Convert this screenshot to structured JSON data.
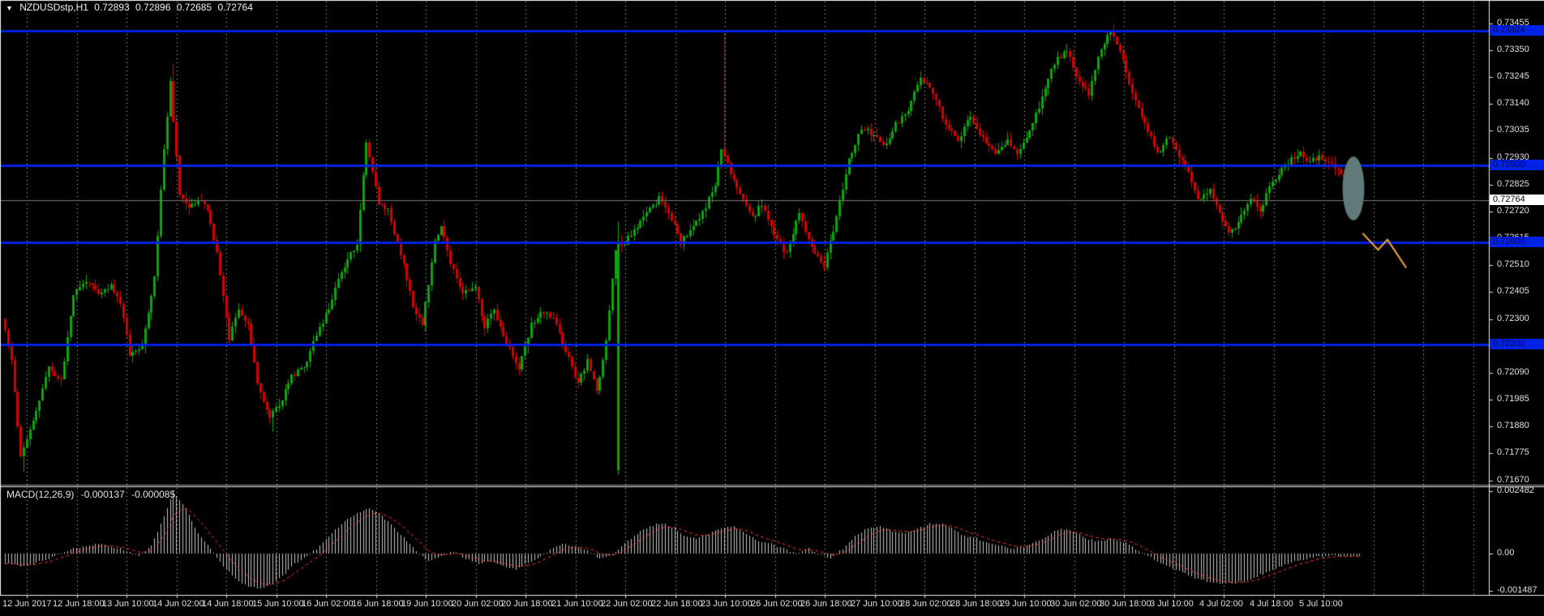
{
  "symbol_info": {
    "expander": "▼",
    "name": "NZDUSDstp,H1",
    "open": "0.72893",
    "high": "0.72896",
    "low": "0.72685",
    "close": "0.72764"
  },
  "macd_info": {
    "name": "MACD(12,26,9)",
    "main": "-0.000137",
    "signal": "-0.000085"
  },
  "price_axis": {
    "ticks": [
      "0.73455",
      "0.73350",
      "0.73245",
      "0.73140",
      "0.73035",
      "0.72930",
      "0.72825",
      "0.72720",
      "0.72615",
      "0.72510",
      "0.72405",
      "0.72300",
      "0.72195",
      "0.72090",
      "0.71985",
      "0.71880",
      "0.71775",
      "0.71670"
    ],
    "current_price_label": "0.72764"
  },
  "macd_axis": {
    "ticks": [
      {
        "label": "0.002482",
        "value": 0.002482
      },
      {
        "label": "0.00",
        "value": 0.0
      },
      {
        "label": "-0.001487",
        "value": -0.001487
      }
    ]
  },
  "time_axis": {
    "labels": [
      "12 Jun 2017",
      "12 Jun 18:00",
      "13 Jun 10:00",
      "14 Jun 02:00",
      "14 Jun 18:00",
      "15 Jun 10:00",
      "16 Jun 02:00",
      "16 Jun 18:00",
      "19 Jun 10:00",
      "20 Jun 02:00",
      "20 Jun 18:00",
      "21 Jun 10:00",
      "22 Jun 02:00",
      "22 Jun 18:00",
      "23 Jun 10:00",
      "26 Jun 02:00",
      "26 Jun 18:00",
      "27 Jun 10:00",
      "28 Jun 02:00",
      "28 Jun 18:00",
      "29 Jun 10:00",
      "30 Jun 02:00",
      "30 Jun 18:00",
      "3 Jul 10:00",
      "4 Jul 02:00",
      "4 Jul 18:00",
      "5 Jul 10:00"
    ]
  },
  "colors": {
    "background": "#000000",
    "grid": "#d6d6d6",
    "bull": "#0ca50c",
    "bear": "#d40000",
    "hline": "#0021e6",
    "current_line": "#7a7a7a",
    "macd_hist": "#c6c6c6",
    "macd_signal": "#e83a3a",
    "ellipse": "#5f7a78",
    "zigzag": "#f0a146",
    "axis_text": "#e0e0e0",
    "separator": "#f0f0f0"
  },
  "chart_data": {
    "type": "candlestick",
    "symbol": "NZDUSDstp",
    "timeframe": "H1",
    "ylim": [
      0.71653,
      0.73539
    ],
    "bars_total": 436,
    "hlines": [
      {
        "label": "0.73424",
        "price": 0.73424
      },
      {
        "label": "0.72900",
        "price": 0.729
      },
      {
        "label": "0.72600",
        "price": 0.726
      },
      {
        "label": "0.72200",
        "price": 0.722
      }
    ],
    "current_price": 0.72764,
    "price_anchors": [
      [
        0,
        0.723
      ],
      [
        3,
        0.7214
      ],
      [
        6,
        0.7176
      ],
      [
        11,
        0.7194
      ],
      [
        15,
        0.7211
      ],
      [
        19,
        0.7206
      ],
      [
        23,
        0.724
      ],
      [
        27,
        0.7245
      ],
      [
        31,
        0.724
      ],
      [
        35,
        0.7243
      ],
      [
        38,
        0.7236
      ],
      [
        41,
        0.7216
      ],
      [
        45,
        0.722
      ],
      [
        49,
        0.7246
      ],
      [
        52,
        0.7297
      ],
      [
        54,
        0.7323
      ],
      [
        55,
        0.7307
      ],
      [
        57,
        0.7279
      ],
      [
        60,
        0.7273
      ],
      [
        64,
        0.7276
      ],
      [
        66,
        0.7273
      ],
      [
        69,
        0.7256
      ],
      [
        73,
        0.7222
      ],
      [
        76,
        0.7234
      ],
      [
        79,
        0.7228
      ],
      [
        82,
        0.7205
      ],
      [
        86,
        0.7192
      ],
      [
        90,
        0.7199
      ],
      [
        93,
        0.7208
      ],
      [
        97,
        0.7211
      ],
      [
        101,
        0.7224
      ],
      [
        105,
        0.7234
      ],
      [
        108,
        0.7245
      ],
      [
        111,
        0.7253
      ],
      [
        114,
        0.7259
      ],
      [
        117,
        0.7299
      ],
      [
        121,
        0.7275
      ],
      [
        124,
        0.7272
      ],
      [
        128,
        0.7256
      ],
      [
        132,
        0.7235
      ],
      [
        135,
        0.7227
      ],
      [
        139,
        0.7261
      ],
      [
        141,
        0.7266
      ],
      [
        144,
        0.7252
      ],
      [
        148,
        0.724
      ],
      [
        152,
        0.7243
      ],
      [
        155,
        0.7227
      ],
      [
        158,
        0.7234
      ],
      [
        162,
        0.7221
      ],
      [
        166,
        0.721
      ],
      [
        170,
        0.7228
      ],
      [
        173,
        0.7233
      ],
      [
        177,
        0.723
      ],
      [
        181,
        0.7218
      ],
      [
        185,
        0.7205
      ],
      [
        188,
        0.7214
      ],
      [
        191,
        0.7202
      ],
      [
        194,
        0.7221
      ],
      [
        197,
        0.7258
      ],
      [
        200,
        0.726
      ],
      [
        204,
        0.7266
      ],
      [
        207,
        0.7272
      ],
      [
        211,
        0.7277
      ],
      [
        215,
        0.7269
      ],
      [
        218,
        0.726
      ],
      [
        222,
        0.7266
      ],
      [
        226,
        0.7274
      ],
      [
        229,
        0.7283
      ],
      [
        231,
        0.7297
      ],
      [
        237,
        0.7278
      ],
      [
        241,
        0.7269
      ],
      [
        244,
        0.7275
      ],
      [
        248,
        0.7262
      ],
      [
        252,
        0.7255
      ],
      [
        256,
        0.7272
      ],
      [
        260,
        0.7258
      ],
      [
        264,
        0.725
      ],
      [
        268,
        0.727
      ],
      [
        272,
        0.7292
      ],
      [
        276,
        0.7305
      ],
      [
        280,
        0.7302
      ],
      [
        284,
        0.7298
      ],
      [
        287,
        0.7306
      ],
      [
        291,
        0.7312
      ],
      [
        295,
        0.7325
      ],
      [
        299,
        0.7318
      ],
      [
        303,
        0.7306
      ],
      [
        307,
        0.73
      ],
      [
        311,
        0.7309
      ],
      [
        315,
        0.7301
      ],
      [
        319,
        0.7295
      ],
      [
        323,
        0.73
      ],
      [
        326,
        0.7294
      ],
      [
        330,
        0.7303
      ],
      [
        334,
        0.7316
      ],
      [
        338,
        0.733
      ],
      [
        342,
        0.7335
      ],
      [
        345,
        0.7325
      ],
      [
        349,
        0.7318
      ],
      [
        352,
        0.7332
      ],
      [
        356,
        0.7343
      ],
      [
        359,
        0.7335
      ],
      [
        363,
        0.7318
      ],
      [
        367,
        0.7306
      ],
      [
        371,
        0.7295
      ],
      [
        375,
        0.7301
      ],
      [
        378,
        0.7294
      ],
      [
        381,
        0.7287
      ],
      [
        384,
        0.7277
      ],
      [
        388,
        0.728
      ],
      [
        391,
        0.7272
      ],
      [
        394,
        0.7263
      ],
      [
        397,
        0.7268
      ],
      [
        401,
        0.7277
      ],
      [
        404,
        0.7273
      ],
      [
        407,
        0.7281
      ],
      [
        410,
        0.7287
      ],
      [
        414,
        0.7292
      ],
      [
        417,
        0.7295
      ],
      [
        420,
        0.7291
      ],
      [
        423,
        0.7294
      ],
      [
        427,
        0.729
      ],
      [
        430,
        0.7287
      ],
      [
        433,
        0.728
      ],
      [
        435,
        0.72764
      ]
    ],
    "special_bars": [
      {
        "bar": 6,
        "low": 0.71705
      },
      {
        "bar": 54,
        "high": 0.73295
      },
      {
        "bar": 86,
        "low": 0.7186
      },
      {
        "bar": 197,
        "open": 0.7171,
        "close": 0.726,
        "high": 0.7268,
        "low": 0.7169
      },
      {
        "bar": 231,
        "high": 0.7342
      },
      {
        "bar": 356,
        "high": 0.7345
      }
    ],
    "macd": {
      "params": "12,26,9",
      "value": -0.000137,
      "signal_value": -8.5e-05,
      "ylim": [
        -0.001487,
        0.002482
      ],
      "anchors": [
        [
          0,
          -0.0004
        ],
        [
          6,
          -0.0005
        ],
        [
          14,
          -0.0002
        ],
        [
          22,
          0.0002
        ],
        [
          30,
          0.0004
        ],
        [
          37,
          0.0002
        ],
        [
          43,
          -0.0001
        ],
        [
          47,
          0.0003
        ],
        [
          51,
          0.0015
        ],
        [
          54,
          0.00248
        ],
        [
          58,
          0.0018
        ],
        [
          62,
          0.0008
        ],
        [
          66,
          0.0002
        ],
        [
          70,
          -0.0005
        ],
        [
          74,
          -0.001
        ],
        [
          78,
          -0.0013
        ],
        [
          82,
          -0.0014
        ],
        [
          86,
          -0.0012
        ],
        [
          90,
          -0.0008
        ],
        [
          93,
          -0.0004
        ],
        [
          97,
          -0.0001
        ],
        [
          101,
          0.0003
        ],
        [
          105,
          0.0008
        ],
        [
          109,
          0.0013
        ],
        [
          113,
          0.0016
        ],
        [
          117,
          0.0018
        ],
        [
          121,
          0.0015
        ],
        [
          125,
          0.001
        ],
        [
          129,
          0.0005
        ],
        [
          133,
          0.0
        ],
        [
          136,
          -0.0003
        ],
        [
          140,
          -0.0001
        ],
        [
          144,
          0.0001
        ],
        [
          148,
          -0.0002
        ],
        [
          152,
          -0.0004
        ],
        [
          156,
          -0.0003
        ],
        [
          160,
          -0.0005
        ],
        [
          164,
          -0.0006
        ],
        [
          168,
          -0.0004
        ],
        [
          172,
          -0.0001
        ],
        [
          176,
          0.0002
        ],
        [
          179,
          0.0004
        ],
        [
          183,
          0.0003
        ],
        [
          187,
          0.0001
        ],
        [
          191,
          -0.0002
        ],
        [
          195,
          -0.0001
        ],
        [
          199,
          0.0004
        ],
        [
          203,
          0.0008
        ],
        [
          207,
          0.0011
        ],
        [
          211,
          0.0012
        ],
        [
          215,
          0.001
        ],
        [
          218,
          0.0007
        ],
        [
          222,
          0.0006
        ],
        [
          226,
          0.0008
        ],
        [
          230,
          0.001
        ],
        [
          234,
          0.0011
        ],
        [
          238,
          0.0008
        ],
        [
          242,
          0.0005
        ],
        [
          246,
          0.0004
        ],
        [
          250,
          0.0002
        ],
        [
          254,
          0.0
        ],
        [
          258,
          0.0002
        ],
        [
          261,
          0.0
        ],
        [
          265,
          -0.0002
        ],
        [
          269,
          0.0002
        ],
        [
          273,
          0.0007
        ],
        [
          277,
          0.001
        ],
        [
          281,
          0.0011
        ],
        [
          285,
          0.0009
        ],
        [
          289,
          0.0008
        ],
        [
          293,
          0.001
        ],
        [
          297,
          0.0012
        ],
        [
          300,
          0.0012
        ],
        [
          304,
          0.001
        ],
        [
          308,
          0.0007
        ],
        [
          312,
          0.0006
        ],
        [
          316,
          0.0004
        ],
        [
          320,
          0.0003
        ],
        [
          324,
          0.0002
        ],
        [
          328,
          0.0003
        ],
        [
          332,
          0.0005
        ],
        [
          336,
          0.0008
        ],
        [
          339,
          0.001
        ],
        [
          343,
          0.0009
        ],
        [
          347,
          0.0006
        ],
        [
          351,
          0.0005
        ],
        [
          355,
          0.0006
        ],
        [
          359,
          0.0005
        ],
        [
          363,
          0.0002
        ],
        [
          367,
          -0.0001
        ],
        [
          371,
          -0.0004
        ],
        [
          375,
          -0.0006
        ],
        [
          379,
          -0.0008
        ],
        [
          382,
          -0.001
        ],
        [
          386,
          -0.0011
        ],
        [
          390,
          -0.0012
        ],
        [
          394,
          -0.0012
        ],
        [
          398,
          -0.0011
        ],
        [
          402,
          -0.0009
        ],
        [
          406,
          -0.0007
        ],
        [
          410,
          -0.0005
        ],
        [
          414,
          -0.0003
        ],
        [
          418,
          -0.0002
        ],
        [
          421,
          -0.0001
        ],
        [
          425,
          -0.0001
        ],
        [
          429,
          -0.0001
        ],
        [
          433,
          -0.0001
        ],
        [
          435,
          -0.0001
        ]
      ]
    },
    "annotations": {
      "ellipse": {
        "bar": 433,
        "price": 0.7281,
        "rx_bars": 3.5,
        "ry_price": 0.00125
      },
      "zigzag": [
        [
          436,
          0.72635
        ],
        [
          441,
          0.7257
        ],
        [
          444,
          0.7261
        ],
        [
          450,
          0.725
        ]
      ]
    }
  }
}
